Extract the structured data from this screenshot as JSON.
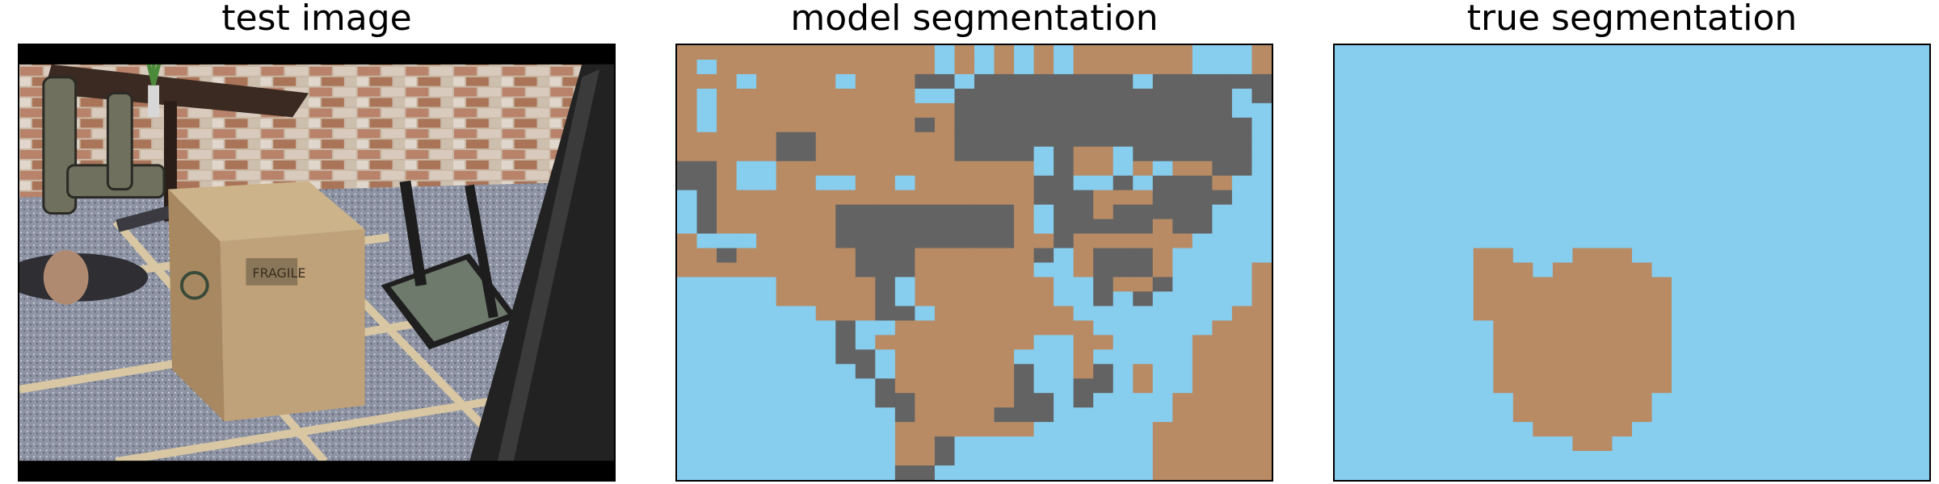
{
  "panels": [
    {
      "title": "test image"
    },
    {
      "title": "model segmentation"
    },
    {
      "title": "true segmentation"
    }
  ],
  "colors": {
    "sky": "#87cdee",
    "brown": "#b88b65",
    "gray": "#636363"
  },
  "model_segmentation": [
    "BBBBBBBBBBBBBSBSBSBSBBBBBBSSSB",
    "BSBBBBBBBBBBBSBSBSBSBBBBBBSSSB",
    "BBBSBBBBSBBBGGSGGGGGGGGSGGGGGG",
    "BSBBBBBBBBBBSSGGGGGGGGGGGGGGSG",
    "BSBBBBBBBBBBBBGGGGGGGGGGGGGGSS",
    "BSBBBBBBBBBBGBGGGGGGGGGGGGGGGS",
    "BBBBBGGBBBBBBBGGGGGGGGGGGGGGGS",
    "BBBBBGGBBBBBBBGGGGSGBBSGGGGGGS",
    "GGBSSBBBBBBBBBBBBBSGBBSBSBBGGS",
    "GGBSSBBSSBBSBBBBBBGGSSGSGGGBSS",
    "SGBBBBBBBBBBBBBBBBGGGBBBGGGGSS",
    "SGBBBBBBGGGGGGGGGBSGGBGGGGGSSS",
    "SGBBBBBBGGGGGGGGGBSGGGGGBGGSSS",
    "BSSSBBBBGGGGGGGGGBBGBBBBBBSSSS",
    "BBGBBBBBBGGGBBBBBBGSBGGGBSSSSS",
    "BBBBBBBBBGGGBBBBBBSSBGGGBSSSSB",
    "SSSSSBBBBBGSBBBBBBBSSGBBGSSSSB",
    "SSSSSBBBBBGSBBBBBBBSSGSGSSSSSB",
    "SSSSSSSBBBGGSBBBBBBBSSSSSSSSBB",
    "SSSSSSSSGSSBBBBBBBBBBSSSSSSBBB",
    "SSSSSSSSGSBBBBBBBBSSBBSSSSBBBB",
    "SSSSSSSSGGSBBBBBBSSSBSSSSSBBBB",
    "SSSSSSSSSGSBBBBBBGSSBGSBSSBBBB",
    "SSSSSSSSSSGBBBBBBGSSGGSBSSBBBB",
    "SSSSSSSSSSGGBBBBBGGSGSSSSBBBBB",
    "SSSSSSSSSSSGBBBBGGGSSSSSSBBBBB",
    "SSSSSSSSSSSBBBBBBBSSSSSSBBBBBB",
    "SSSSSSSSSSSBBGSSSSSSSSSSBBBBBB",
    "SSSSSSSSSSSBBGSSSSSSSSSSBBBBBB",
    "SSSSSSSSSSSGGSSSSSSSSSSSBBBBBB"
  ],
  "true_segmentation": [
    "SSSSSSSSSSSSSSSSSSSSSSSSSSSSSS",
    "SSSSSSSSSSSSSSSSSSSSSSSSSSSSSS",
    "SSSSSSSSSSSSSSSSSSSSSSSSSSSSSS",
    "SSSSSSSSSSSSSSSSSSSSSSSSSSSSSS",
    "SSSSSSSSSSSSSSSSSSSSSSSSSSSSSS",
    "SSSSSSSSSSSSSSSSSSSSSSSSSSSSSS",
    "SSSSSSSSSSSSSSSSSSSSSSSSSSSSSS",
    "SSSSSSSSSSSSSSSSSSSSSSSSSSSSSS",
    "SSSSSSSSSSSSSSSSSSSSSSSSSSSSSS",
    "SSSSSSSSSSSSSSSSSSSSSSSSSSSSSS",
    "SSSSSSSSSSSSSSSSSSSSSSSSSSSSSS",
    "SSSSSSSSSSSSSSSSSSSSSSSSSSSSSS",
    "SSSSSSSSSSSSSSSSSSSSSSSSSSSSSS",
    "SSSSSSSSSSSSSSSSSSSSSSSSSSSSSS",
    "SSSSSSSBBSSSBBBSSSSSSSSSSSSSSS",
    "SSSSSSSBBBSBBBBBSSSSSSSSSSSSSS",
    "SSSSSSSBBBBBBBBBBSSSSSSSSSSSSS",
    "SSSSSSSBBBBBBBBBBSSSSSSSSSSSSS",
    "SSSSSSSBBBBBBBBBBSSSSSSSSSSSSS",
    "SSSSSSSSBBBBBBBBBSSSSSSSSSSSSS",
    "SSSSSSSSBBBBBBBBBSSSSSSSSSSSSS",
    "SSSSSSSSBBBBBBBBBSSSSSSSSSSSSS",
    "SSSSSSSSBBBBBBBBBSSSSSSSSSSSSS",
    "SSSSSSSSBBBBBBBBBSSSSSSSSSSSSS",
    "SSSSSSSSSBBBBBBBSSSSSSSSSSSSSS",
    "SSSSSSSSSBBBBBBBSSSSSSSSSSSSSS",
    "SSSSSSSSSSBBBBBSSSSSSSSSSSSSSS",
    "SSSSSSSSSSSSBBSSSSSSSSSSSSSSSS",
    "SSSSSSSSSSSSSSSSSSSSSSSSSSSSSS",
    "SSSSSSSSSSSSSSSSSSSSSSSSSSSSSS"
  ]
}
